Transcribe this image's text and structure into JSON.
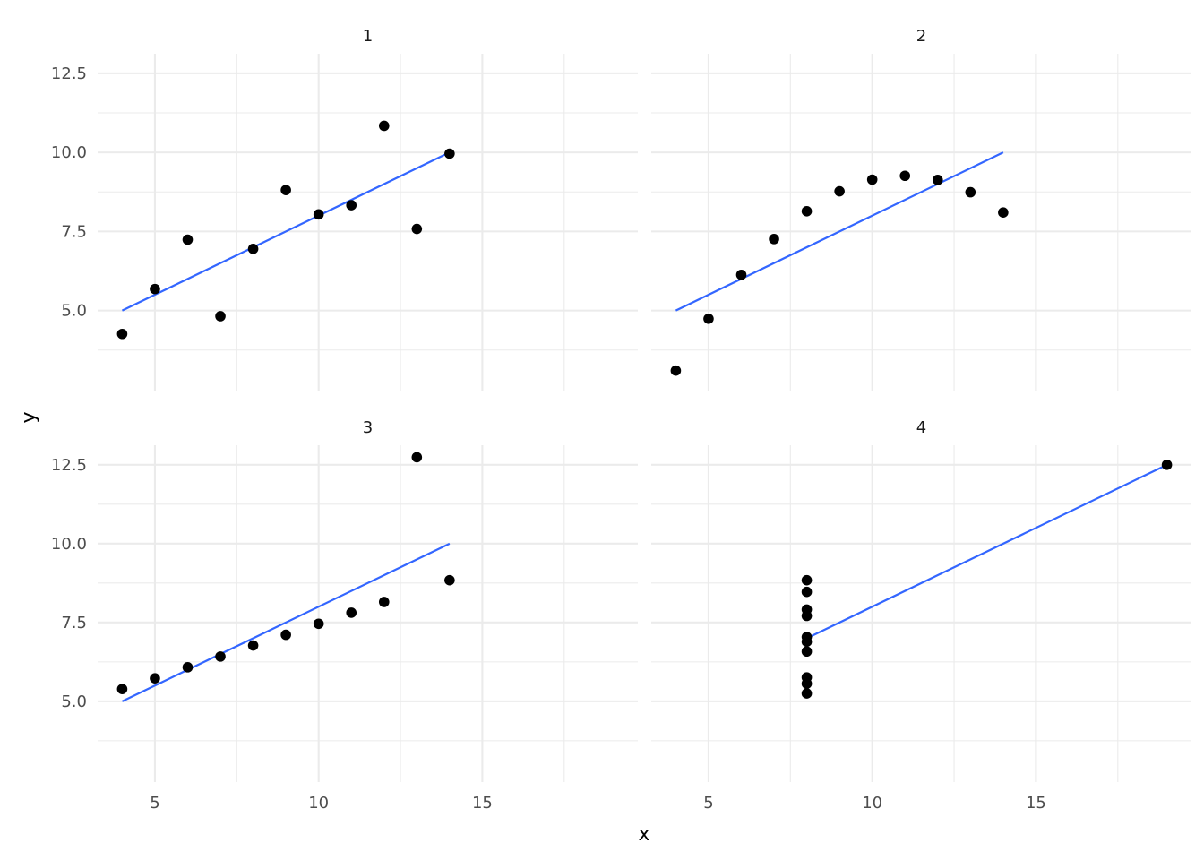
{
  "chart_data": {
    "type": "scatter",
    "facets": [
      "1",
      "2",
      "3",
      "4"
    ],
    "xlabel": "x",
    "ylabel": "y",
    "xlim": [
      3.25,
      19.75
    ],
    "ylim": [
      2.44,
      13.12
    ],
    "x_ticks": [
      5,
      10,
      15
    ],
    "x_tick_labels": [
      "5",
      "10",
      "15"
    ],
    "y_ticks": [
      5.0,
      7.5,
      10.0,
      12.5
    ],
    "y_tick_labels": [
      "5.0",
      "7.5",
      "10.0",
      "12.5"
    ],
    "grid": true,
    "panels": [
      {
        "name": "1",
        "x": [
          10,
          8,
          13,
          9,
          11,
          14,
          6,
          4,
          12,
          7,
          5
        ],
        "y": [
          8.04,
          6.95,
          7.58,
          8.81,
          8.33,
          9.96,
          7.24,
          4.26,
          10.84,
          4.82,
          5.68
        ],
        "fit": {
          "x": [
            4,
            14
          ],
          "y": [
            5.0,
            10.0
          ]
        }
      },
      {
        "name": "2",
        "x": [
          10,
          8,
          13,
          9,
          11,
          14,
          6,
          4,
          12,
          7,
          5
        ],
        "y": [
          9.14,
          8.14,
          8.74,
          8.77,
          9.26,
          8.1,
          6.13,
          3.1,
          9.13,
          7.26,
          4.74
        ],
        "fit": {
          "x": [
            4,
            14
          ],
          "y": [
            5.0,
            10.0
          ]
        }
      },
      {
        "name": "3",
        "x": [
          10,
          8,
          13,
          9,
          11,
          14,
          6,
          4,
          12,
          7,
          5
        ],
        "y": [
          7.46,
          6.77,
          12.74,
          7.11,
          7.81,
          8.84,
          6.08,
          5.39,
          8.15,
          6.42,
          5.73
        ],
        "fit": {
          "x": [
            4,
            14
          ],
          "y": [
            5.0,
            10.0
          ]
        }
      },
      {
        "name": "4",
        "x": [
          8,
          8,
          8,
          8,
          8,
          8,
          8,
          19,
          8,
          8,
          8
        ],
        "y": [
          6.58,
          5.76,
          7.71,
          8.84,
          8.47,
          7.04,
          5.25,
          12.5,
          5.56,
          7.91,
          6.89
        ],
        "fit": {
          "x": [
            8,
            19
          ],
          "y": [
            7.0,
            12.5
          ]
        }
      }
    ]
  }
}
